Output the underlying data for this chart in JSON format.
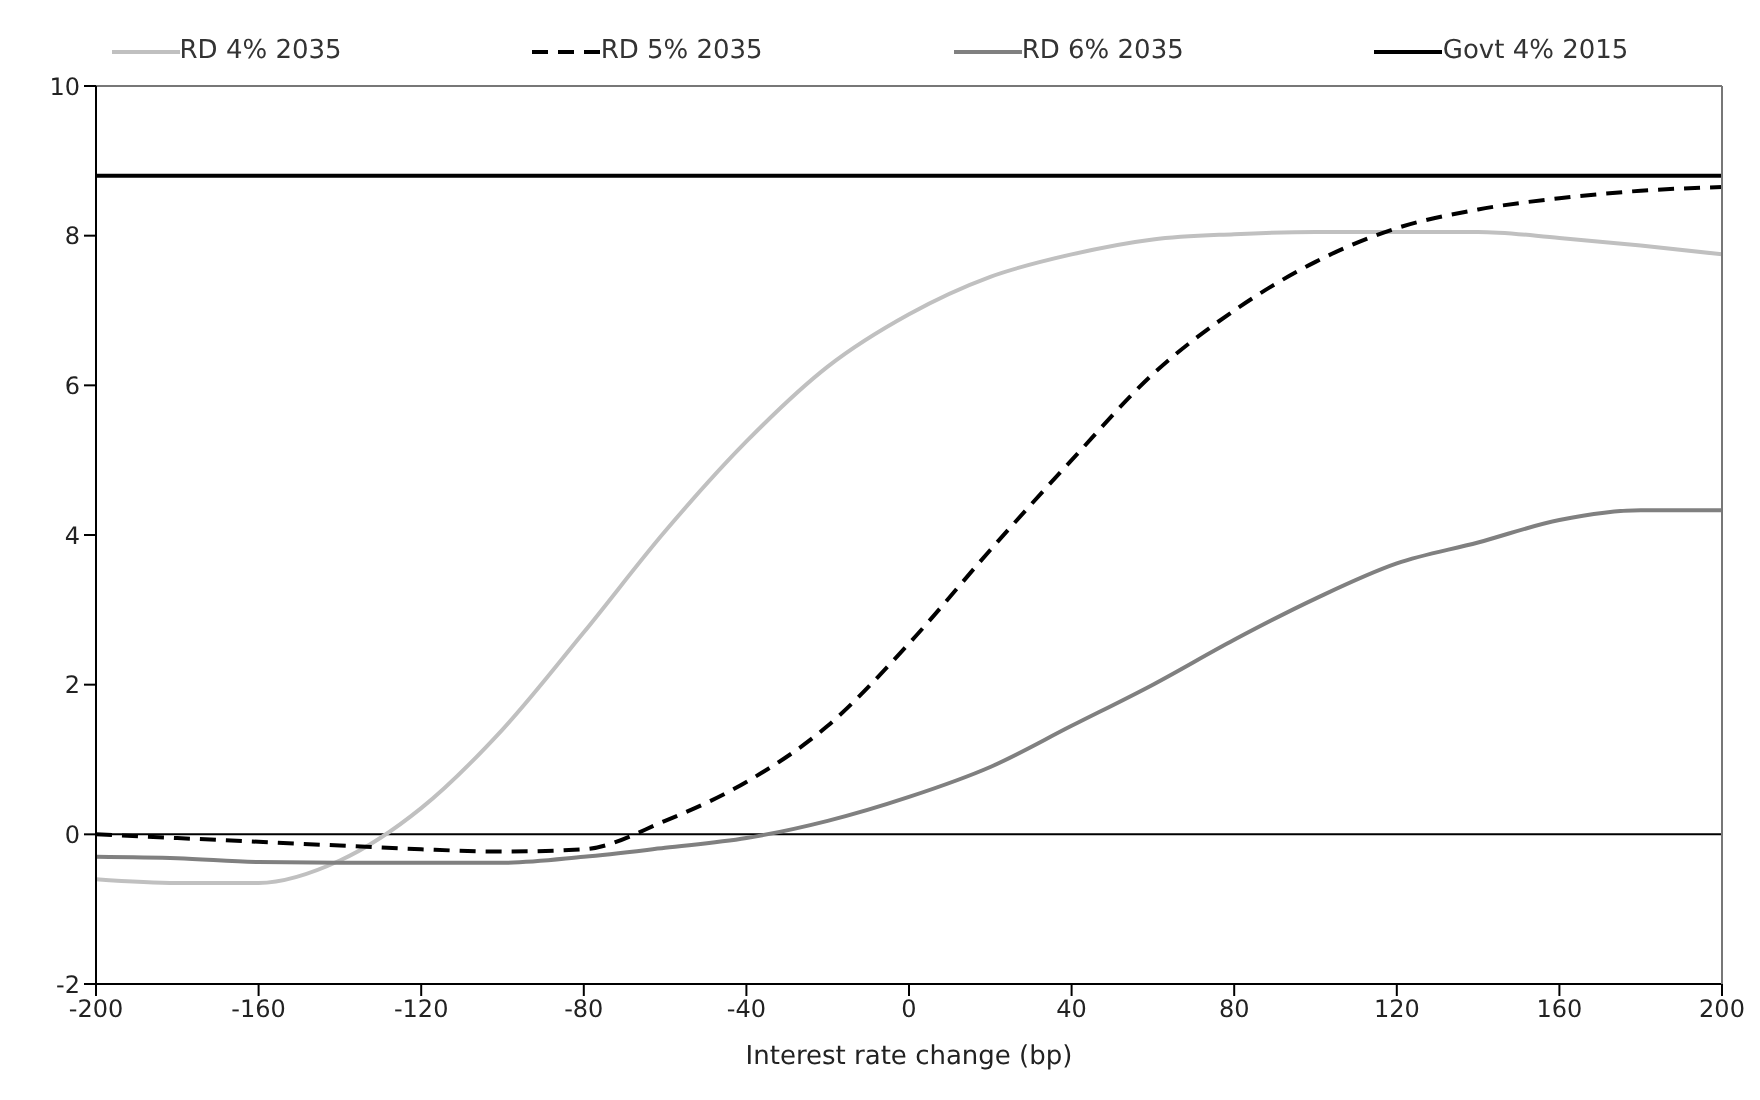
{
  "chart_data": {
    "type": "line",
    "xlabel": "Interest rate change (bp)",
    "x": [
      -200,
      -180,
      -160,
      -140,
      -120,
      -100,
      -80,
      -60,
      -40,
      -20,
      0,
      20,
      40,
      60,
      80,
      100,
      120,
      140,
      160,
      180,
      200
    ],
    "series": [
      {
        "name": "RD 4% 2035",
        "color": "#c0c0c0",
        "line_style": "solid",
        "values": [
          -0.6,
          -0.65,
          -0.65,
          -0.35,
          0.35,
          1.4,
          2.7,
          4.05,
          5.25,
          6.25,
          6.95,
          7.45,
          7.75,
          7.95,
          8.02,
          8.05,
          8.05,
          8.05,
          7.97,
          7.87,
          7.75
        ]
      },
      {
        "name": "RD 5% 2035",
        "color": "#000000",
        "line_style": "dashed",
        "values": [
          0.0,
          -0.05,
          -0.1,
          -0.15,
          -0.2,
          -0.23,
          -0.2,
          0.18,
          0.7,
          1.45,
          2.55,
          3.8,
          5.0,
          6.15,
          7.0,
          7.65,
          8.1,
          8.35,
          8.5,
          8.6,
          8.65
        ]
      },
      {
        "name": "RD 6% 2035",
        "color": "#808080",
        "line_style": "solid",
        "values": [
          -0.3,
          -0.32,
          -0.37,
          -0.38,
          -0.38,
          -0.38,
          -0.3,
          -0.18,
          -0.05,
          0.18,
          0.5,
          0.9,
          1.45,
          2.0,
          2.6,
          3.15,
          3.62,
          3.9,
          4.2,
          4.33,
          4.33
        ]
      },
      {
        "name": "Govt 4% 2015",
        "color": "#000000",
        "line_style": "solid",
        "values": [
          8.8,
          8.8,
          8.8,
          8.8,
          8.8,
          8.8,
          8.8,
          8.8,
          8.8,
          8.8,
          8.8,
          8.8,
          8.8,
          8.8,
          8.8,
          8.8,
          8.8,
          8.8,
          8.8,
          8.8,
          8.8
        ]
      }
    ],
    "xlim": [
      -200,
      200
    ],
    "xticks": [
      -200,
      -160,
      -120,
      -80,
      -40,
      0,
      40,
      80,
      120,
      160,
      200
    ],
    "ylim": [
      -2,
      10
    ],
    "yticks": [
      -2,
      0,
      2,
      4,
      6,
      8,
      10
    ],
    "grid": false,
    "legend": "top",
    "marker": "none"
  }
}
